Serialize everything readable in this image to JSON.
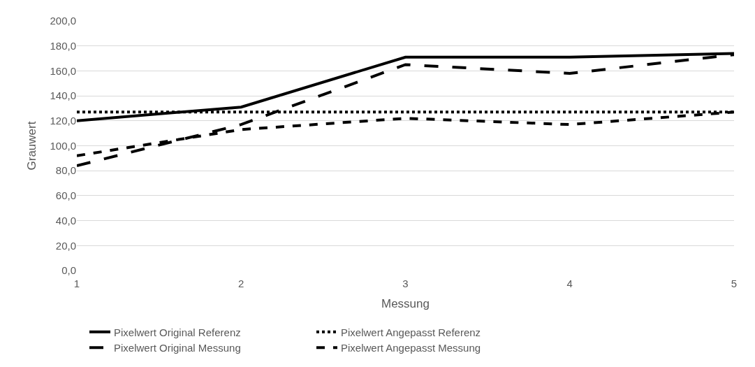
{
  "chart_data": {
    "type": "line",
    "xlabel": "Messung",
    "ylabel": "Grauwert",
    "x": [
      1,
      2,
      3,
      4,
      5
    ],
    "xlim": [
      1,
      5
    ],
    "xticks": [
      1,
      2,
      3,
      4,
      5
    ],
    "ylim": [
      0,
      200
    ],
    "yticks": [
      {
        "value": 0,
        "label": "0,0"
      },
      {
        "value": 20,
        "label": "20,0"
      },
      {
        "value": 40,
        "label": "40,0"
      },
      {
        "value": 60,
        "label": "60,0"
      },
      {
        "value": 80,
        "label": "80,0"
      },
      {
        "value": 100,
        "label": "100,0"
      },
      {
        "value": 120,
        "label": "120,0"
      },
      {
        "value": 140,
        "label": "140,0"
      },
      {
        "value": 160,
        "label": "160,0"
      },
      {
        "value": 180,
        "label": "180,0"
      },
      {
        "value": 200,
        "label": "200,0"
      }
    ],
    "grid": "y",
    "legend": "bottom",
    "marker": "none",
    "series": [
      {
        "name": "Pixelwert Original Referenz",
        "color": "#000000",
        "line_style": "solid",
        "values": [
          120,
          131,
          171,
          171,
          174
        ]
      },
      {
        "name": "Pixelwert Angepasst Referenz",
        "color": "#000000",
        "line_style": "dotted",
        "values": [
          127,
          127,
          127,
          127,
          127
        ]
      },
      {
        "name": "Pixelwert Original Messung",
        "color": "#000000",
        "line_style": "longdashed",
        "values": [
          84,
          117,
          165,
          158,
          173
        ]
      },
      {
        "name": "Pixelwert Angepasst Messung",
        "color": "#000000",
        "line_style": "dashed",
        "values": [
          92,
          113,
          122,
          117,
          127
        ]
      }
    ]
  }
}
